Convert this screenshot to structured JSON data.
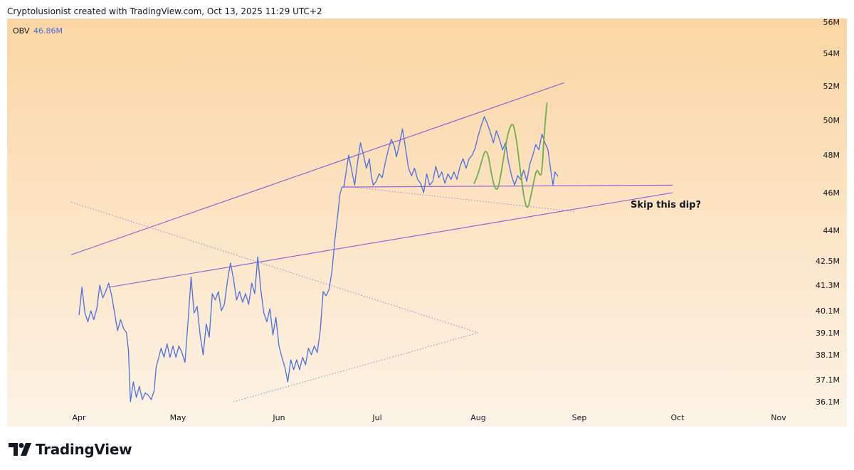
{
  "header": {
    "text": "Cryptolusionist created with TradingView.com, Oct 13, 2025 11:29 UTC+2"
  },
  "footer": {
    "brand": "TradingView"
  },
  "colors": {
    "obv": "#4a6fe3",
    "trendline": "#8b59d6",
    "dotted": "#9c7fd4",
    "sketch": "#6aaf4c",
    "bg_top": "#fbd6a4",
    "bg_bottom": "#fcf3e6",
    "legend_value": "#4a6fe3"
  },
  "chart_data": {
    "type": "line",
    "legend": {
      "name": "OBV",
      "value": "46.86M"
    },
    "annotation": "Skip this dip?",
    "x_ticks": [
      "Apr",
      "May",
      "Jun",
      "Jul",
      "Aug",
      "Sep",
      "Oct",
      "Nov"
    ],
    "y_ticks": [
      "36.1M",
      "37.1M",
      "38.1M",
      "39.1M",
      "40.1M",
      "41.3M",
      "42.5M",
      "44M",
      "46M",
      "48M",
      "50M",
      "52M",
      "54M",
      "56M"
    ],
    "y_tick_values": [
      36.1,
      37.1,
      38.1,
      39.1,
      40.1,
      41.3,
      42.5,
      44,
      46,
      48,
      50,
      52,
      54,
      56
    ],
    "series": [
      {
        "values": [
          [
            0.0,
            39.9
          ],
          [
            0.03,
            41.2
          ],
          [
            0.06,
            40.0
          ],
          [
            0.09,
            39.6
          ],
          [
            0.12,
            40.1
          ],
          [
            0.15,
            39.7
          ],
          [
            0.18,
            40.2
          ],
          [
            0.21,
            41.3
          ],
          [
            0.24,
            40.7
          ],
          [
            0.27,
            41.0
          ],
          [
            0.3,
            41.4
          ],
          [
            0.33,
            40.8
          ],
          [
            0.36,
            40.0
          ],
          [
            0.39,
            39.2
          ],
          [
            0.42,
            39.7
          ],
          [
            0.45,
            39.3
          ],
          [
            0.48,
            39.1
          ],
          [
            0.5,
            38.3
          ],
          [
            0.52,
            36.1
          ],
          [
            0.55,
            37.0
          ],
          [
            0.58,
            36.3
          ],
          [
            0.61,
            36.8
          ],
          [
            0.64,
            36.2
          ],
          [
            0.67,
            36.5
          ],
          [
            0.7,
            36.4
          ],
          [
            0.73,
            36.2
          ],
          [
            0.76,
            36.6
          ],
          [
            0.78,
            37.6
          ],
          [
            0.8,
            37.9
          ],
          [
            0.83,
            38.4
          ],
          [
            0.86,
            38.0
          ],
          [
            0.89,
            38.6
          ],
          [
            0.92,
            38.0
          ],
          [
            0.95,
            38.5
          ],
          [
            0.98,
            38.0
          ],
          [
            1.01,
            38.5
          ],
          [
            1.04,
            38.2
          ],
          [
            1.07,
            37.8
          ],
          [
            1.1,
            39.6
          ],
          [
            1.13,
            41.7
          ],
          [
            1.16,
            40.0
          ],
          [
            1.19,
            40.3
          ],
          [
            1.22,
            39.0
          ],
          [
            1.25,
            38.1
          ],
          [
            1.28,
            39.5
          ],
          [
            1.31,
            38.9
          ],
          [
            1.34,
            40.9
          ],
          [
            1.37,
            40.6
          ],
          [
            1.4,
            41.0
          ],
          [
            1.43,
            40.1
          ],
          [
            1.46,
            40.4
          ],
          [
            1.49,
            41.5
          ],
          [
            1.52,
            42.4
          ],
          [
            1.55,
            41.6
          ],
          [
            1.58,
            40.6
          ],
          [
            1.61,
            41.0
          ],
          [
            1.64,
            40.5
          ],
          [
            1.67,
            40.9
          ],
          [
            1.7,
            40.4
          ],
          [
            1.73,
            41.4
          ],
          [
            1.76,
            40.9
          ],
          [
            1.79,
            42.7
          ],
          [
            1.82,
            41.1
          ],
          [
            1.85,
            40.0
          ],
          [
            1.88,
            39.6
          ],
          [
            1.91,
            40.2
          ],
          [
            1.94,
            39.0
          ],
          [
            1.97,
            39.8
          ],
          [
            2.0,
            38.5
          ],
          [
            2.03,
            38.0
          ],
          [
            2.06,
            37.6
          ],
          [
            2.09,
            37.0
          ],
          [
            2.12,
            37.9
          ],
          [
            2.15,
            37.5
          ],
          [
            2.18,
            37.9
          ],
          [
            2.21,
            37.5
          ],
          [
            2.24,
            38.0
          ],
          [
            2.27,
            37.7
          ],
          [
            2.3,
            38.4
          ],
          [
            2.33,
            38.1
          ],
          [
            2.36,
            38.5
          ],
          [
            2.39,
            38.2
          ],
          [
            2.42,
            39.2
          ],
          [
            2.45,
            41.0
          ],
          [
            2.48,
            40.8
          ],
          [
            2.51,
            41.1
          ],
          [
            2.54,
            42.0
          ],
          [
            2.57,
            43.6
          ],
          [
            2.6,
            44.9
          ],
          [
            2.62,
            45.9
          ],
          [
            2.64,
            46.3
          ],
          [
            2.66,
            46.3
          ],
          [
            2.69,
            47.3
          ],
          [
            2.71,
            48.0
          ],
          [
            2.74,
            47.2
          ],
          [
            2.77,
            46.4
          ],
          [
            2.8,
            47.6
          ],
          [
            2.83,
            48.7
          ],
          [
            2.86,
            48.0
          ],
          [
            2.89,
            47.3
          ],
          [
            2.92,
            47.8
          ],
          [
            2.94,
            46.9
          ],
          [
            2.96,
            46.4
          ],
          [
            2.99,
            46.6
          ],
          [
            3.02,
            47.0
          ],
          [
            3.05,
            46.8
          ],
          [
            3.08,
            47.6
          ],
          [
            3.11,
            48.3
          ],
          [
            3.14,
            48.9
          ],
          [
            3.17,
            48.5
          ],
          [
            3.19,
            47.9
          ],
          [
            3.22,
            48.6
          ],
          [
            3.25,
            49.5
          ],
          [
            3.28,
            48.4
          ],
          [
            3.31,
            47.3
          ],
          [
            3.34,
            46.9
          ],
          [
            3.37,
            47.3
          ],
          [
            3.4,
            46.7
          ],
          [
            3.43,
            46.5
          ],
          [
            3.46,
            46.0
          ],
          [
            3.49,
            47.0
          ],
          [
            3.52,
            46.4
          ],
          [
            3.55,
            46.6
          ],
          [
            3.58,
            47.4
          ],
          [
            3.61,
            46.8
          ],
          [
            3.64,
            47.1
          ],
          [
            3.67,
            46.5
          ],
          [
            3.7,
            47.0
          ],
          [
            3.73,
            46.7
          ],
          [
            3.76,
            47.1
          ],
          [
            3.79,
            46.7
          ],
          [
            3.82,
            47.4
          ],
          [
            3.85,
            47.8
          ],
          [
            3.88,
            47.3
          ],
          [
            3.91,
            47.8
          ],
          [
            3.94,
            48.0
          ],
          [
            3.97,
            48.4
          ],
          [
            4.0,
            49.1
          ],
          [
            4.03,
            49.7
          ],
          [
            4.06,
            50.2
          ],
          [
            4.09,
            49.8
          ],
          [
            4.12,
            49.3
          ],
          [
            4.15,
            48.7
          ],
          [
            4.18,
            49.4
          ],
          [
            4.21,
            48.9
          ],
          [
            4.24,
            48.3
          ],
          [
            4.27,
            48.7
          ],
          [
            4.3,
            47.6
          ],
          [
            4.33,
            46.9
          ],
          [
            4.36,
            46.4
          ],
          [
            4.39,
            46.9
          ],
          [
            4.42,
            46.7
          ],
          [
            4.45,
            47.2
          ],
          [
            4.48,
            46.6
          ],
          [
            4.51,
            47.5
          ],
          [
            4.54,
            48.0
          ],
          [
            4.57,
            48.6
          ],
          [
            4.6,
            48.3
          ],
          [
            4.63,
            49.2
          ],
          [
            4.66,
            48.7
          ],
          [
            4.69,
            48.3
          ],
          [
            4.72,
            47.1
          ],
          [
            4.74,
            46.4
          ],
          [
            4.76,
            47.1
          ],
          [
            4.79,
            46.86
          ]
        ]
      }
    ],
    "sketch_projection": [
      [
        3.96,
        46.5
      ],
      [
        4.0,
        47.0
      ],
      [
        4.04,
        47.8
      ],
      [
        4.07,
        48.3
      ],
      [
        4.1,
        48.0
      ],
      [
        4.13,
        47.0
      ],
      [
        4.16,
        46.3
      ],
      [
        4.19,
        46.1
      ],
      [
        4.22,
        46.8
      ],
      [
        4.26,
        48.2
      ],
      [
        4.3,
        49.4
      ],
      [
        4.34,
        49.9
      ],
      [
        4.37,
        49.2
      ],
      [
        4.4,
        47.9
      ],
      [
        4.43,
        46.6
      ],
      [
        4.46,
        45.5
      ],
      [
        4.49,
        45.1
      ],
      [
        4.52,
        45.8
      ],
      [
        4.55,
        46.6
      ],
      [
        4.58,
        47.3
      ],
      [
        4.61,
        46.9
      ],
      [
        4.63,
        47.0
      ],
      [
        4.65,
        49.0
      ],
      [
        4.67,
        50.4
      ],
      [
        4.68,
        51.0
      ]
    ],
    "trendlines": [
      {
        "points": [
          [
            -0.08,
            42.8
          ],
          [
            4.85,
            52.2
          ]
        ],
        "style": "solid"
      },
      {
        "points": [
          0.3,
          41.2,
          5.95,
          46.0
        ],
        "style": "solid"
      },
      {
        "points": [
          [
            2.66,
            46.3
          ],
          [
            5.95,
            46.4
          ]
        ],
        "style": "solid"
      }
    ],
    "dotted_lines": [
      {
        "points": [
          [
            -0.08,
            45.5
          ],
          [
            4.0,
            39.1
          ]
        ]
      },
      {
        "points": [
          [
            1.55,
            36.1
          ],
          [
            4.0,
            39.1
          ]
        ]
      },
      {
        "points": [
          [
            2.66,
            46.35
          ],
          [
            4.95,
            45.0
          ]
        ]
      }
    ],
    "grid": false
  }
}
